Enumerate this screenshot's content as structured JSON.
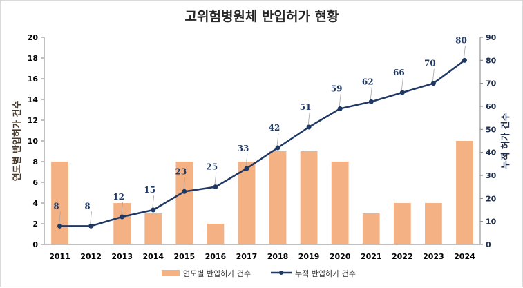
{
  "chart_data": {
    "type": "bar",
    "title": "고위험병원체 반입허가 현황",
    "categories": [
      "2011",
      "2012",
      "2013",
      "2014",
      "2015",
      "2016",
      "2017",
      "2018",
      "2019",
      "2020",
      "2021",
      "2022",
      "2023",
      "2024"
    ],
    "series": [
      {
        "name": "연도별 반입허가 건수",
        "type": "bar",
        "axis": "left",
        "color": "#f4b183",
        "values": [
          8,
          0,
          4,
          3,
          8,
          2,
          8,
          9,
          9,
          8,
          3,
          4,
          4,
          10
        ]
      },
      {
        "name": "누적 반입허가 건수",
        "type": "line",
        "axis": "right",
        "color": "#1f3864",
        "values": [
          8,
          8,
          12,
          15,
          23,
          25,
          33,
          42,
          51,
          59,
          62,
          66,
          70,
          80
        ]
      }
    ],
    "ylabel": "연도별 반입허가 건수",
    "y2label": "누적 허가 건수",
    "ylim": [
      0,
      20
    ],
    "yticks": [
      0,
      2,
      4,
      6,
      8,
      10,
      12,
      14,
      16,
      18,
      20
    ],
    "y2lim": [
      0,
      90
    ],
    "y2ticks": [
      0,
      10,
      20,
      30,
      40,
      50,
      60,
      70,
      80,
      90
    ],
    "grid": false,
    "legend_position": "bottom"
  }
}
